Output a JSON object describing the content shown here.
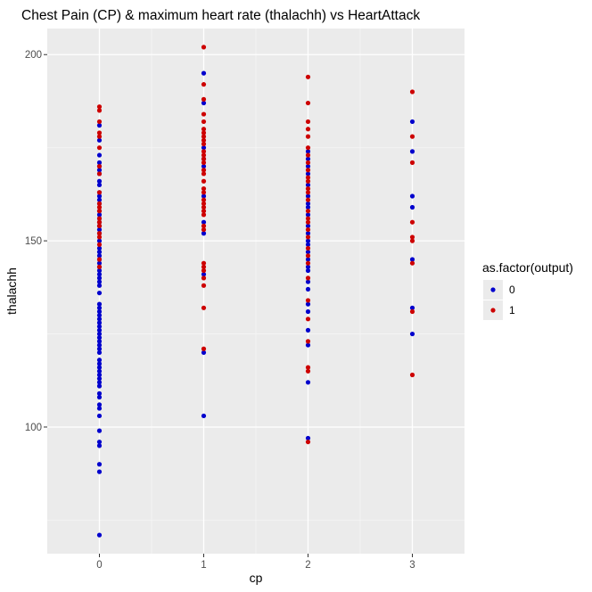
{
  "chart_data": {
    "type": "scatter",
    "title": "Chest Pain (CP) & maximum heart rate (thalachh) vs HeartAttack",
    "xlabel": "cp",
    "ylabel": "thalachh",
    "xlim": [
      -0.5,
      3.5
    ],
    "ylim": [
      66,
      207
    ],
    "x_ticks": [
      0,
      1,
      2,
      3
    ],
    "y_ticks": [
      100,
      150,
      200
    ],
    "grid": true,
    "legend": {
      "title": "as.factor(output)",
      "position": "right",
      "entries": [
        {
          "label": "0",
          "color": "#0000CD"
        },
        {
          "label": "1",
          "color": "#CD0000"
        }
      ]
    },
    "series": [
      {
        "name": "0",
        "color": "#0000CD",
        "points": [
          [
            0,
            71
          ],
          [
            0,
            88
          ],
          [
            0,
            90
          ],
          [
            0,
            95
          ],
          [
            0,
            96
          ],
          [
            0,
            99
          ],
          [
            0,
            103
          ],
          [
            0,
            105
          ],
          [
            0,
            106
          ],
          [
            0,
            108
          ],
          [
            0,
            109
          ],
          [
            0,
            111
          ],
          [
            0,
            112
          ],
          [
            0,
            113
          ],
          [
            0,
            114
          ],
          [
            0,
            115
          ],
          [
            0,
            116
          ],
          [
            0,
            117
          ],
          [
            0,
            118
          ],
          [
            0,
            120
          ],
          [
            0,
            121
          ],
          [
            0,
            122
          ],
          [
            0,
            123
          ],
          [
            0,
            124
          ],
          [
            0,
            125
          ],
          [
            0,
            126
          ],
          [
            0,
            127
          ],
          [
            0,
            128
          ],
          [
            0,
            129
          ],
          [
            0,
            130
          ],
          [
            0,
            131
          ],
          [
            0,
            132
          ],
          [
            0,
            133
          ],
          [
            0,
            136
          ],
          [
            0,
            138
          ],
          [
            0,
            139
          ],
          [
            0,
            140
          ],
          [
            0,
            141
          ],
          [
            0,
            142
          ],
          [
            0,
            143
          ],
          [
            0,
            144
          ],
          [
            0,
            145
          ],
          [
            0,
            146
          ],
          [
            0,
            147
          ],
          [
            0,
            148
          ],
          [
            0,
            150
          ],
          [
            0,
            152
          ],
          [
            0,
            153
          ],
          [
            0,
            154
          ],
          [
            0,
            155
          ],
          [
            0,
            156
          ],
          [
            0,
            157
          ],
          [
            0,
            158
          ],
          [
            0,
            160
          ],
          [
            0,
            161
          ],
          [
            0,
            162
          ],
          [
            0,
            163
          ],
          [
            0,
            165
          ],
          [
            0,
            166
          ],
          [
            0,
            168
          ],
          [
            0,
            169
          ],
          [
            0,
            170
          ],
          [
            0,
            171
          ],
          [
            0,
            173
          ],
          [
            0,
            177
          ],
          [
            0,
            181
          ],
          [
            1,
            103
          ],
          [
            1,
            120
          ],
          [
            1,
            141
          ],
          [
            1,
            152
          ],
          [
            1,
            155
          ],
          [
            1,
            162
          ],
          [
            1,
            170
          ],
          [
            1,
            172
          ],
          [
            1,
            175
          ],
          [
            1,
            187
          ],
          [
            1,
            195
          ],
          [
            2,
            97
          ],
          [
            2,
            112
          ],
          [
            2,
            122
          ],
          [
            2,
            126
          ],
          [
            2,
            131
          ],
          [
            2,
            133
          ],
          [
            2,
            137
          ],
          [
            2,
            139
          ],
          [
            2,
            142
          ],
          [
            2,
            143
          ],
          [
            2,
            145
          ],
          [
            2,
            147
          ],
          [
            2,
            149
          ],
          [
            2,
            150
          ],
          [
            2,
            152
          ],
          [
            2,
            154
          ],
          [
            2,
            157
          ],
          [
            2,
            159
          ],
          [
            2,
            160
          ],
          [
            2,
            162
          ],
          [
            2,
            165
          ],
          [
            2,
            168
          ],
          [
            2,
            170
          ],
          [
            2,
            172
          ],
          [
            2,
            174
          ],
          [
            3,
            125
          ],
          [
            3,
            132
          ],
          [
            3,
            145
          ],
          [
            3,
            159
          ],
          [
            3,
            162
          ],
          [
            3,
            174
          ],
          [
            3,
            182
          ]
        ]
      },
      {
        "name": "1",
        "color": "#CD0000",
        "points": [
          [
            0,
            143
          ],
          [
            0,
            145
          ],
          [
            0,
            149
          ],
          [
            0,
            151
          ],
          [
            0,
            152
          ],
          [
            0,
            154
          ],
          [
            0,
            155
          ],
          [
            0,
            156
          ],
          [
            0,
            158
          ],
          [
            0,
            159
          ],
          [
            0,
            160
          ],
          [
            0,
            163
          ],
          [
            0,
            168
          ],
          [
            0,
            170
          ],
          [
            0,
            175
          ],
          [
            0,
            178
          ],
          [
            0,
            179
          ],
          [
            0,
            182
          ],
          [
            0,
            185
          ],
          [
            0,
            186
          ],
          [
            1,
            121
          ],
          [
            1,
            132
          ],
          [
            1,
            138
          ],
          [
            1,
            140
          ],
          [
            1,
            142
          ],
          [
            1,
            143
          ],
          [
            1,
            144
          ],
          [
            1,
            153
          ],
          [
            1,
            154
          ],
          [
            1,
            157
          ],
          [
            1,
            158
          ],
          [
            1,
            159
          ],
          [
            1,
            160
          ],
          [
            1,
            161
          ],
          [
            1,
            163
          ],
          [
            1,
            164
          ],
          [
            1,
            166
          ],
          [
            1,
            168
          ],
          [
            1,
            169
          ],
          [
            1,
            171
          ],
          [
            1,
            172
          ],
          [
            1,
            173
          ],
          [
            1,
            174
          ],
          [
            1,
            176
          ],
          [
            1,
            177
          ],
          [
            1,
            178
          ],
          [
            1,
            179
          ],
          [
            1,
            180
          ],
          [
            1,
            182
          ],
          [
            1,
            184
          ],
          [
            1,
            188
          ],
          [
            1,
            192
          ],
          [
            1,
            202
          ],
          [
            2,
            96
          ],
          [
            2,
            115
          ],
          [
            2,
            116
          ],
          [
            2,
            123
          ],
          [
            2,
            129
          ],
          [
            2,
            134
          ],
          [
            2,
            140
          ],
          [
            2,
            144
          ],
          [
            2,
            146
          ],
          [
            2,
            148
          ],
          [
            2,
            151
          ],
          [
            2,
            153
          ],
          [
            2,
            155
          ],
          [
            2,
            156
          ],
          [
            2,
            158
          ],
          [
            2,
            161
          ],
          [
            2,
            163
          ],
          [
            2,
            164
          ],
          [
            2,
            166
          ],
          [
            2,
            167
          ],
          [
            2,
            169
          ],
          [
            2,
            171
          ],
          [
            2,
            173
          ],
          [
            2,
            175
          ],
          [
            2,
            178
          ],
          [
            2,
            180
          ],
          [
            2,
            182
          ],
          [
            2,
            187
          ],
          [
            2,
            194
          ],
          [
            3,
            114
          ],
          [
            3,
            131
          ],
          [
            3,
            144
          ],
          [
            3,
            150
          ],
          [
            3,
            151
          ],
          [
            3,
            155
          ],
          [
            3,
            171
          ],
          [
            3,
            178
          ],
          [
            3,
            190
          ]
        ]
      }
    ]
  }
}
